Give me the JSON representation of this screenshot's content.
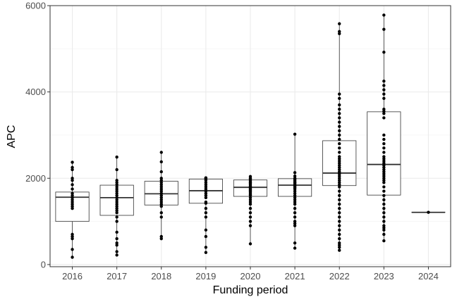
{
  "chart_data": {
    "type": "boxplot",
    "title": "",
    "xlabel": "Funding period",
    "ylabel": "APC",
    "ylim": [
      -50,
      6000
    ],
    "y_ticks": [
      0,
      2000,
      4000,
      6000
    ],
    "y_tick_labels": [
      "0",
      "2000",
      "4000",
      "6000"
    ],
    "grid": true,
    "categories": [
      "2016",
      "2017",
      "2018",
      "2019",
      "2020",
      "2021",
      "2022",
      "2023",
      "2024"
    ],
    "boxes": [
      {
        "category": "2016",
        "lower_whisker": 170,
        "q1": 1000,
        "median": 1560,
        "q3": 1680,
        "upper_whisker": 2370
      },
      {
        "category": "2017",
        "lower_whisker": 220,
        "q1": 1140,
        "median": 1550,
        "q3": 1840,
        "upper_whisker": 2490
      },
      {
        "category": "2018",
        "lower_whisker": 600,
        "q1": 1380,
        "median": 1640,
        "q3": 1930,
        "upper_whisker": 2600
      },
      {
        "category": "2019",
        "lower_whisker": 280,
        "q1": 1420,
        "median": 1710,
        "q3": 1980,
        "upper_whisker": 2010
      },
      {
        "category": "2020",
        "lower_whisker": 480,
        "q1": 1580,
        "median": 1790,
        "q3": 1960,
        "upper_whisker": 2040
      },
      {
        "category": "2021",
        "lower_whisker": 380,
        "q1": 1580,
        "median": 1840,
        "q3": 1990,
        "upper_whisker": 3020
      },
      {
        "category": "2022",
        "lower_whisker": 330,
        "q1": 1830,
        "median": 2120,
        "q3": 2870,
        "upper_whisker": 5580
      },
      {
        "category": "2023",
        "lower_whisker": 550,
        "q1": 1610,
        "median": 2320,
        "q3": 3540,
        "upper_whisker": 5780
      },
      {
        "category": "2024",
        "lower_whisker": 1210,
        "q1": 1210,
        "median": 1210,
        "q3": 1210,
        "upper_whisker": 1210
      }
    ],
    "points": [
      {
        "category": "2016",
        "values": [
          2370,
          2250,
          2200,
          2000,
          1950,
          1850,
          1750,
          1650,
          1600,
          1550,
          1500,
          1450,
          1400,
          1350,
          1300,
          700,
          650,
          600,
          350,
          170
        ]
      },
      {
        "category": "2017",
        "values": [
          2490,
          2200,
          1950,
          1900,
          1850,
          1800,
          1750,
          1700,
          1650,
          1600,
          1550,
          1500,
          1450,
          1400,
          1350,
          1300,
          1250,
          1200,
          1100,
          1000,
          750,
          600,
          500,
          450,
          300,
          220
        ]
      },
      {
        "category": "2018",
        "values": [
          2600,
          2380,
          2150,
          2000,
          1950,
          1900,
          1850,
          1800,
          1750,
          1700,
          1650,
          1600,
          1550,
          1500,
          1450,
          1400,
          1350,
          1200,
          1100,
          650,
          600
        ]
      },
      {
        "category": "2019",
        "values": [
          2010,
          2000,
          1980,
          1950,
          1900,
          1850,
          1800,
          1750,
          1700,
          1650,
          1600,
          1550,
          1450,
          1420,
          1300,
          1200,
          1100,
          800,
          650,
          400,
          280
        ]
      },
      {
        "category": "2020",
        "values": [
          2040,
          2000,
          1980,
          1950,
          1920,
          1900,
          1880,
          1850,
          1820,
          1800,
          1780,
          1760,
          1740,
          1720,
          1700,
          1680,
          1650,
          1620,
          1600,
          1550,
          1500,
          1450,
          1400,
          1300,
          1200,
          1100,
          1000,
          900,
          480
        ]
      },
      {
        "category": "2021",
        "values": [
          3020,
          2130,
          2050,
          2000,
          1980,
          1950,
          1920,
          1900,
          1880,
          1850,
          1820,
          1800,
          1780,
          1750,
          1700,
          1650,
          1600,
          1550,
          1500,
          1450,
          1400,
          1300,
          1200,
          1100,
          1000,
          950,
          900,
          500,
          380
        ]
      },
      {
        "category": "2022",
        "values": [
          5580,
          5400,
          5350,
          3950,
          3850,
          3700,
          3600,
          3500,
          3400,
          3300,
          3200,
          3100,
          3000,
          2900,
          2800,
          2700,
          2600,
          2500,
          2450,
          2400,
          2350,
          2300,
          2250,
          2200,
          2150,
          2100,
          2050,
          2000,
          1950,
          1900,
          1850,
          1800,
          1700,
          1600,
          1500,
          1400,
          1300,
          1200,
          1100,
          1000,
          900,
          800,
          700,
          600,
          500,
          450,
          400,
          330
        ]
      },
      {
        "category": "2023",
        "values": [
          5780,
          5450,
          4920,
          4250,
          4150,
          4050,
          3950,
          3850,
          3600,
          3550,
          3500,
          3400,
          3000,
          2900,
          2800,
          2700,
          2600,
          2500,
          2450,
          2400,
          2350,
          2300,
          2250,
          2200,
          2150,
          2100,
          2050,
          2000,
          1950,
          1900,
          1800,
          1700,
          1600,
          1500,
          1400,
          1300,
          1200,
          1100,
          1000,
          900,
          850,
          800,
          700,
          550
        ]
      },
      {
        "category": "2024",
        "values": [
          1210
        ]
      }
    ]
  }
}
